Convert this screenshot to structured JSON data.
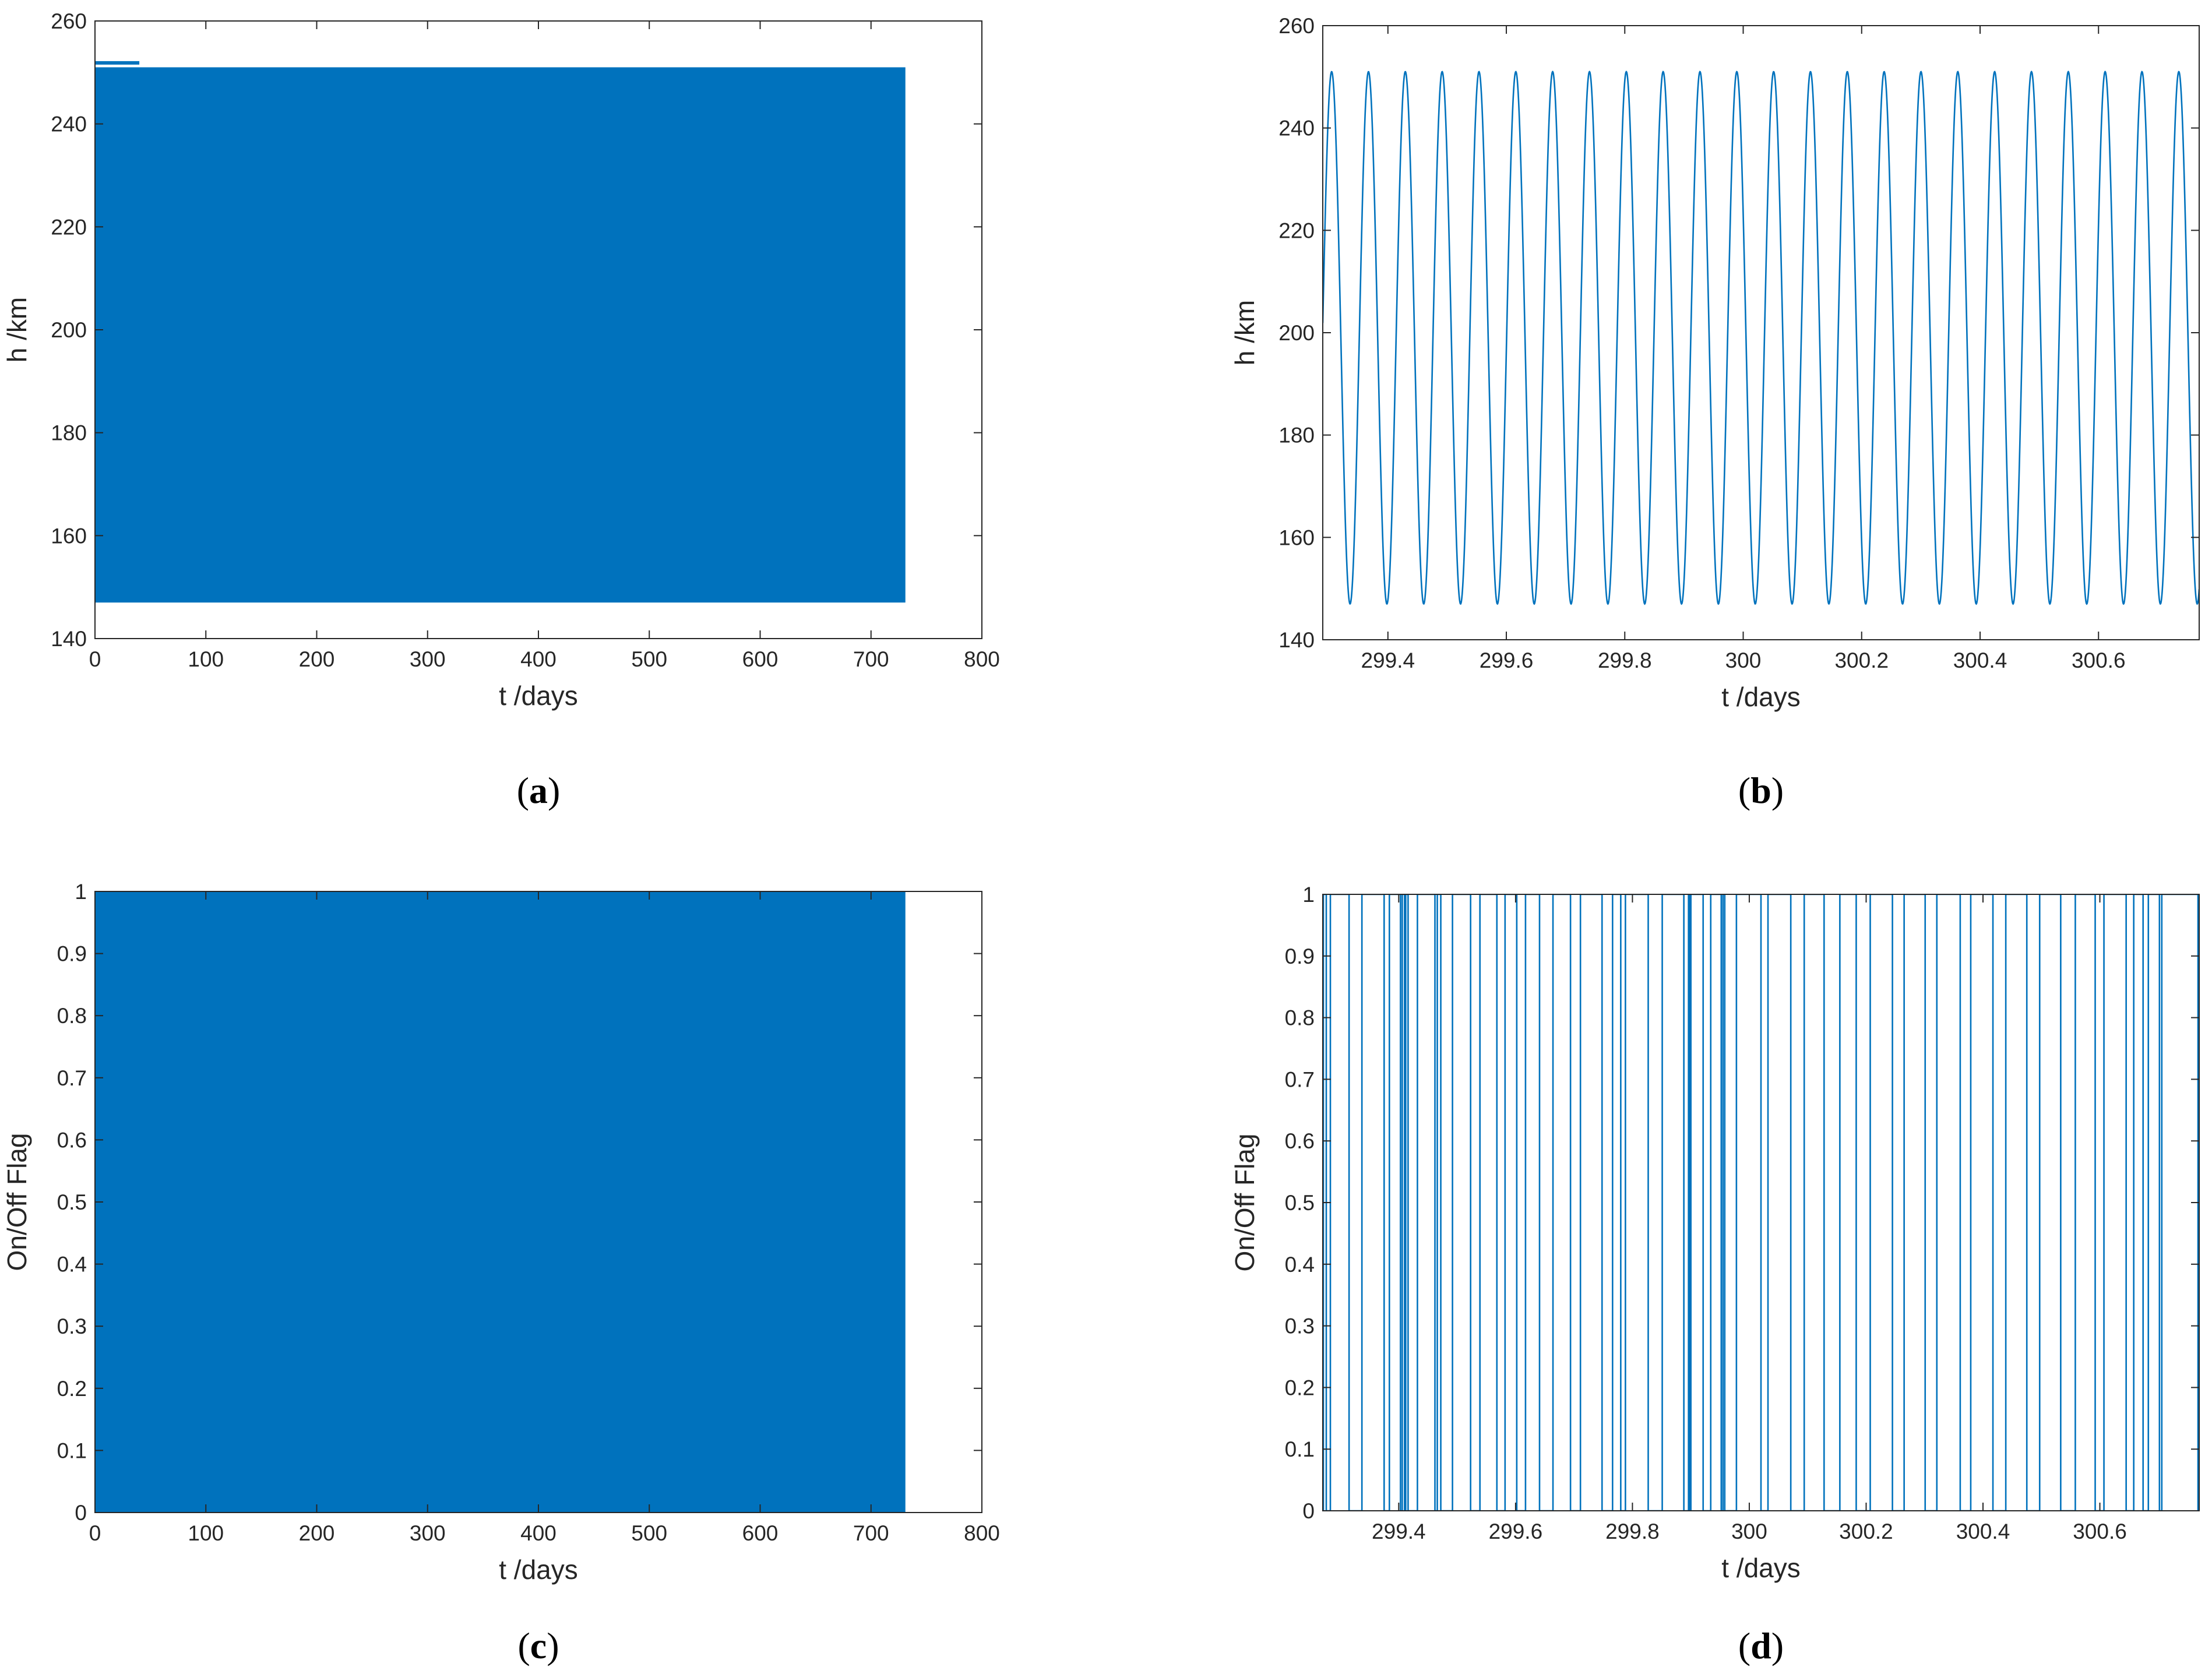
{
  "colors": {
    "series": "#0072BD",
    "axis": "#262626"
  },
  "chart_data": [
    {
      "id": "a",
      "caption": {
        "open": "(",
        "letter": "a",
        "close": ")"
      },
      "type": "area",
      "render": "band",
      "xlabel": "t /days",
      "ylabel": "h /km",
      "xlim": [
        0,
        800
      ],
      "ylim": [
        140,
        260
      ],
      "xticks": [
        0,
        100,
        200,
        300,
        400,
        500,
        600,
        700,
        800
      ],
      "yticks": [
        140,
        160,
        180,
        200,
        220,
        240,
        260
      ],
      "xtick_labels": [
        "0",
        "100",
        "200",
        "300",
        "400",
        "500",
        "600",
        "700",
        "800"
      ],
      "ytick_labels": [
        "140",
        "160",
        "180",
        "200",
        "220",
        "240",
        "260"
      ],
      "series": [
        {
          "x_range": [
            0,
            731
          ],
          "min": 147,
          "max": 251
        }
      ]
    },
    {
      "id": "b",
      "caption": {
        "open": "(",
        "letter": "b",
        "close": ")"
      },
      "type": "line",
      "render": "sine",
      "xlabel": "t /days",
      "ylabel": "h /km",
      "xlim": [
        299.29,
        300.77
      ],
      "ylim": [
        140,
        260
      ],
      "xticks": [
        299.4,
        299.6,
        299.8,
        300,
        300.2,
        300.4,
        300.6
      ],
      "yticks": [
        140,
        160,
        180,
        200,
        220,
        240,
        260
      ],
      "xtick_labels": [
        "299.4",
        "299.6",
        "299.8",
        "300",
        "300.2",
        "300.4",
        "300.6"
      ],
      "ytick_labels": [
        "140",
        "160",
        "180",
        "200",
        "220",
        "240",
        "260"
      ],
      "series": [
        {
          "min": 147,
          "max": 251,
          "period_days": 0.0622,
          "first_peak": 299.305
        }
      ]
    },
    {
      "id": "c",
      "caption": {
        "open": "(",
        "letter": "c",
        "close": ")"
      },
      "type": "area",
      "render": "band",
      "xlabel": "t /days",
      "ylabel": "On/Off Flag",
      "xlim": [
        0,
        800
      ],
      "ylim": [
        0,
        1
      ],
      "xticks": [
        0,
        100,
        200,
        300,
        400,
        500,
        600,
        700,
        800
      ],
      "yticks": [
        0,
        0.1,
        0.2,
        0.3,
        0.4,
        0.5,
        0.6,
        0.7,
        0.8,
        0.9,
        1
      ],
      "xtick_labels": [
        "0",
        "100",
        "200",
        "300",
        "400",
        "500",
        "600",
        "700",
        "800"
      ],
      "ytick_labels": [
        "0",
        "0.1",
        "0.2",
        "0.3",
        "0.4",
        "0.5",
        "0.6",
        "0.7",
        "0.8",
        "0.9",
        "1"
      ],
      "series": [
        {
          "x_range": [
            0,
            731
          ],
          "min": 0,
          "max": 1
        }
      ]
    },
    {
      "id": "d",
      "caption": {
        "open": "(",
        "letter": "d",
        "close": ")"
      },
      "type": "line",
      "render": "step",
      "xlabel": "t /days",
      "ylabel": "On/Off Flag",
      "xlim": [
        299.27,
        300.77
      ],
      "ylim": [
        0,
        1
      ],
      "xticks": [
        299.4,
        299.6,
        299.8,
        300,
        300.2,
        300.4,
        300.6
      ],
      "yticks": [
        0,
        0.1,
        0.2,
        0.3,
        0.4,
        0.5,
        0.6,
        0.7,
        0.8,
        0.9,
        1
      ],
      "xtick_labels": [
        "299.4",
        "299.6",
        "299.8",
        "300",
        "300.2",
        "300.4",
        "300.6"
      ],
      "ytick_labels": [
        "0",
        "0.1",
        "0.2",
        "0.3",
        "0.4",
        "0.5",
        "0.6",
        "0.7",
        "0.8",
        "0.9",
        "1"
      ],
      "series": [
        {
          "on_intervals": [
            [
              299.271,
              299.276
            ],
            [
              299.283,
              299.315
            ],
            [
              299.337,
              299.375
            ],
            [
              299.384,
              299.403
            ],
            [
              299.406,
              299.41
            ],
            [
              299.412,
              299.416
            ],
            [
              299.432,
              299.462
            ],
            [
              299.466,
              299.472
            ],
            [
              299.492,
              299.523
            ],
            [
              299.539,
              299.568
            ],
            [
              299.582,
              299.602
            ],
            [
              299.617,
              299.641
            ],
            [
              299.664,
              299.694
            ],
            [
              299.711,
              299.748
            ],
            [
              299.766,
              299.78
            ],
            [
              299.788,
              299.827
            ],
            [
              299.851,
              299.888
            ],
            [
              299.896,
              299.898
            ],
            [
              299.9,
              299.921
            ],
            [
              299.934,
              299.952
            ],
            [
              299.955,
              299.958
            ],
            [
              299.978,
              300.02
            ],
            [
              300.032,
              300.071
            ],
            [
              300.094,
              300.128
            ],
            [
              300.155,
              300.183
            ],
            [
              300.207,
              300.245
            ],
            [
              300.265,
              300.301
            ],
            [
              300.321,
              300.361
            ],
            [
              300.379,
              300.417
            ],
            [
              300.439,
              300.475
            ],
            [
              300.497,
              300.533
            ],
            [
              300.558,
              300.592
            ],
            [
              300.607,
              300.645
            ],
            [
              300.658,
              300.674
            ],
            [
              300.683,
              300.702
            ],
            [
              300.706,
              300.768
            ]
          ]
        }
      ]
    }
  ]
}
